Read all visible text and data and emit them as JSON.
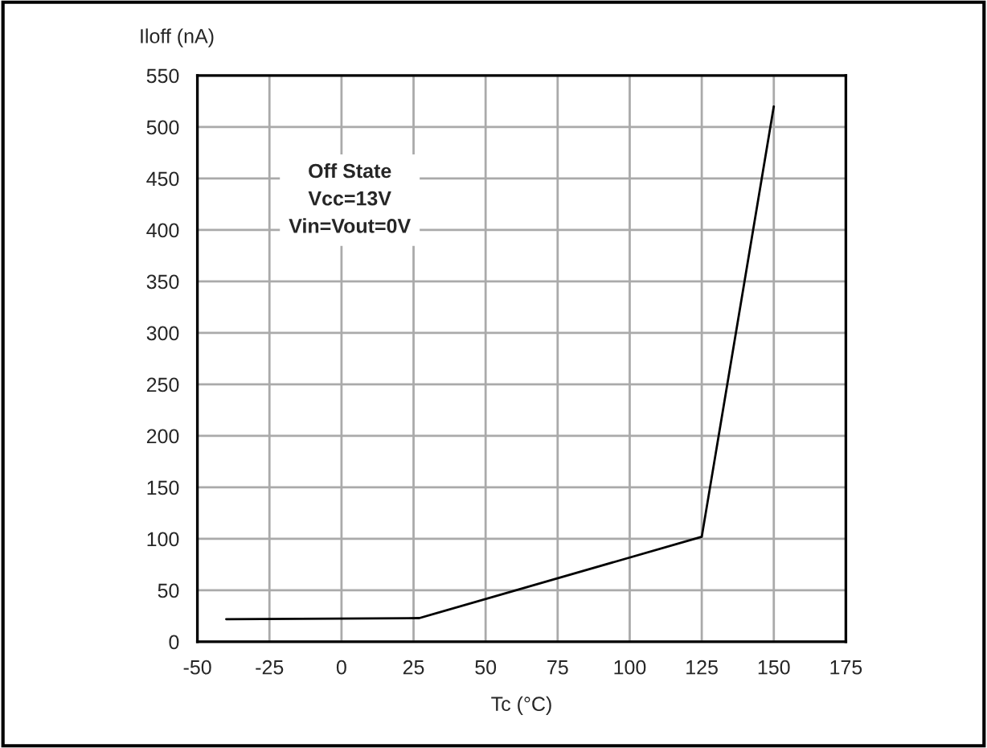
{
  "chart_data": {
    "type": "line",
    "xlabel": "Tc (°C)",
    "ylabel": "Iloff (nA)",
    "x": [
      -40,
      27,
      125,
      150
    ],
    "series": [
      {
        "color": "#000000",
        "values": [
          22,
          23,
          102,
          520
        ]
      }
    ],
    "xlim": [
      -50,
      175
    ],
    "xticks": [
      -50,
      -25,
      0,
      25,
      50,
      75,
      100,
      125,
      150,
      175
    ],
    "ylim": [
      0,
      550
    ],
    "yticks": [
      0,
      50,
      100,
      150,
      200,
      250,
      300,
      350,
      400,
      450,
      500,
      550
    ],
    "grid": true,
    "annotations": [
      "Off State\nVcc=13V\nVin=Vout=0V"
    ]
  }
}
